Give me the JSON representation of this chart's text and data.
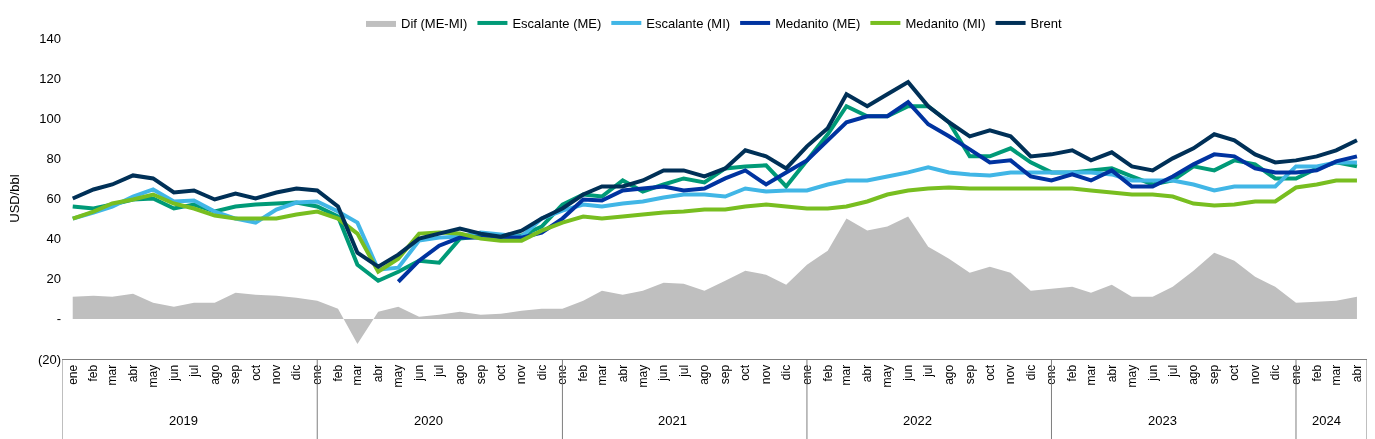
{
  "chart_data": {
    "type": "line",
    "ylabel": "USD/bbl",
    "x": [
      "2019-01",
      "2019-02",
      "2019-03",
      "2019-04",
      "2019-05",
      "2019-06",
      "2019-07",
      "2019-08",
      "2019-09",
      "2019-10",
      "2019-11",
      "2019-12",
      "2020-01",
      "2020-02",
      "2020-03",
      "2020-04",
      "2020-05",
      "2020-06",
      "2020-07",
      "2020-08",
      "2020-09",
      "2020-10",
      "2020-11",
      "2020-12",
      "2021-01",
      "2021-02",
      "2021-03",
      "2021-04",
      "2021-05",
      "2021-06",
      "2021-07",
      "2021-08",
      "2021-09",
      "2021-10",
      "2021-11",
      "2021-12",
      "2022-01",
      "2022-02",
      "2022-03",
      "2022-04",
      "2022-05",
      "2022-06",
      "2022-07",
      "2022-08",
      "2022-09",
      "2022-10",
      "2022-11",
      "2022-12",
      "2023-01",
      "2023-02",
      "2023-03",
      "2023-04",
      "2023-05",
      "2023-06",
      "2023-07",
      "2023-08",
      "2023-09",
      "2023-10",
      "2023-11",
      "2023-12",
      "2024-01",
      "2024-02",
      "2024-03",
      "2024-04"
    ],
    "xticks": [
      {
        "value": "2019-01",
        "label": "ene"
      },
      {
        "value": "2019-02",
        "label": "feb"
      },
      {
        "value": "2019-03",
        "label": "mar"
      },
      {
        "value": "2019-04",
        "label": "abr"
      },
      {
        "value": "2019-05",
        "label": "may"
      },
      {
        "value": "2019-06",
        "label": "jun"
      },
      {
        "value": "2019-07",
        "label": "jul"
      },
      {
        "value": "2019-08",
        "label": "ago"
      },
      {
        "value": "2019-09",
        "label": "sep"
      },
      {
        "value": "2019-10",
        "label": "oct"
      },
      {
        "value": "2019-11",
        "label": "nov"
      },
      {
        "value": "2019-12",
        "label": "dic"
      },
      {
        "value": "2020-01",
        "label": "ene"
      },
      {
        "value": "2020-02",
        "label": "feb"
      },
      {
        "value": "2020-03",
        "label": "mar"
      },
      {
        "value": "2020-04",
        "label": "abr"
      },
      {
        "value": "2020-05",
        "label": "may"
      },
      {
        "value": "2020-06",
        "label": "jun"
      },
      {
        "value": "2020-07",
        "label": "jul"
      },
      {
        "value": "2020-08",
        "label": "ago"
      },
      {
        "value": "2020-09",
        "label": "sep"
      },
      {
        "value": "2020-10",
        "label": "oct"
      },
      {
        "value": "2020-11",
        "label": "nov"
      },
      {
        "value": "2020-12",
        "label": "dic"
      },
      {
        "value": "2021-01",
        "label": "ene"
      },
      {
        "value": "2021-02",
        "label": "feb"
      },
      {
        "value": "2021-03",
        "label": "mar"
      },
      {
        "value": "2021-04",
        "label": "abr"
      },
      {
        "value": "2021-05",
        "label": "may"
      },
      {
        "value": "2021-06",
        "label": "jun"
      },
      {
        "value": "2021-07",
        "label": "jul"
      },
      {
        "value": "2021-08",
        "label": "ago"
      },
      {
        "value": "2021-09",
        "label": "sep"
      },
      {
        "value": "2021-10",
        "label": "oct"
      },
      {
        "value": "2021-11",
        "label": "nov"
      },
      {
        "value": "2021-12",
        "label": "dic"
      },
      {
        "value": "2022-01",
        "label": "ene"
      },
      {
        "value": "2022-02",
        "label": "feb"
      },
      {
        "value": "2022-03",
        "label": "mar"
      },
      {
        "value": "2022-04",
        "label": "abr"
      },
      {
        "value": "2022-05",
        "label": "may"
      },
      {
        "value": "2022-06",
        "label": "jun"
      },
      {
        "value": "2022-07",
        "label": "jul"
      },
      {
        "value": "2022-08",
        "label": "ago"
      },
      {
        "value": "2022-09",
        "label": "sep"
      },
      {
        "value": "2022-10",
        "label": "oct"
      },
      {
        "value": "2022-11",
        "label": "nov"
      },
      {
        "value": "2022-12",
        "label": "dic"
      },
      {
        "value": "2023-01",
        "label": "ene"
      },
      {
        "value": "2023-02",
        "label": "feb"
      },
      {
        "value": "2023-03",
        "label": "mar"
      },
      {
        "value": "2023-04",
        "label": "abr"
      },
      {
        "value": "2023-05",
        "label": "may"
      },
      {
        "value": "2023-06",
        "label": "jun"
      },
      {
        "value": "2023-07",
        "label": "jul"
      },
      {
        "value": "2023-08",
        "label": "ago"
      },
      {
        "value": "2023-09",
        "label": "sep"
      },
      {
        "value": "2023-10",
        "label": "oct"
      },
      {
        "value": "2023-11",
        "label": "nov"
      },
      {
        "value": "2023-12",
        "label": "dic"
      },
      {
        "value": "2024-01",
        "label": "ene"
      },
      {
        "value": "2024-02",
        "label": "feb"
      },
      {
        "value": "2024-03",
        "label": "mar"
      },
      {
        "value": "2024-04",
        "label": "abr"
      }
    ],
    "xlim": [
      "2018-12-16",
      "2024-04-16"
    ],
    "annotations": [
      "2019",
      "2020",
      "2021",
      "2022",
      "2023",
      "2024"
    ],
    "ylim": [
      -20,
      140
    ],
    "yticks": [
      {
        "value": -20,
        "label": "(20)"
      },
      {
        "value": 0,
        "label": "-"
      },
      20,
      40,
      60,
      80,
      100,
      120,
      140
    ],
    "legend": "top",
    "series": [
      {
        "name": "Dif (ME-MI)",
        "type": "area",
        "color": "#bfbfbf",
        "values": [
          11,
          11.5,
          11,
          12.5,
          8,
          6,
          8,
          8,
          13,
          12,
          11.5,
          10.5,
          9,
          5,
          -12.5,
          3.5,
          6,
          1,
          2,
          3.5,
          2,
          2.5,
          4,
          5,
          5,
          9,
          14,
          12,
          14,
          18,
          17.5,
          14,
          19,
          24,
          22,
          17,
          27,
          34,
          50,
          44,
          46,
          51,
          36,
          30,
          23,
          26,
          23,
          14,
          15,
          16,
          13,
          17,
          11,
          11,
          16,
          24,
          33,
          29,
          21,
          16,
          8,
          8.5,
          9,
          11
        ]
      },
      {
        "name": "Escalante (ME)",
        "color": "#009a77",
        "values": [
          56,
          55,
          57,
          59.5,
          60,
          55,
          57,
          53.5,
          56,
          57,
          57.5,
          58,
          56,
          51,
          27,
          19,
          23.5,
          29,
          28,
          40,
          41,
          41.5,
          41.5,
          46,
          57,
          62,
          61,
          69,
          63.5,
          67,
          70,
          68,
          75,
          76,
          76.5,
          66,
          79,
          92,
          106,
          101,
          101,
          106,
          106,
          98,
          81,
          81,
          85,
          78,
          73,
          73,
          74,
          75,
          71,
          67,
          69,
          76,
          74,
          79,
          77,
          70,
          70,
          75,
          78,
          76
        ]
      },
      {
        "name": "Escalante (MI)",
        "color": "#41b6e6",
        "values": [
          50,
          53,
          56,
          61,
          64.5,
          58.5,
          59,
          53.5,
          50,
          48,
          54.5,
          58,
          58.5,
          53.5,
          48,
          24.5,
          25.5,
          39,
          40.5,
          41,
          43,
          42,
          41,
          50,
          54,
          57,
          56,
          57.5,
          58.5,
          60.5,
          62,
          62,
          61,
          65,
          63.5,
          64,
          64,
          67,
          69,
          69,
          71,
          73,
          75.5,
          73,
          72,
          71.5,
          73,
          73,
          73,
          73,
          73,
          72,
          69,
          69,
          69,
          67,
          64,
          66,
          66,
          66,
          76,
          76,
          78,
          78
        ]
      },
      {
        "name": "Medanito (ME)",
        "color": "#0033a0",
        "values": [
          null,
          null,
          null,
          null,
          null,
          null,
          null,
          null,
          null,
          null,
          null,
          null,
          null,
          null,
          null,
          null,
          18.5,
          29,
          36.5,
          40.5,
          40.5,
          40.5,
          40.5,
          43,
          50,
          59.5,
          59,
          64,
          65,
          66,
          64,
          65,
          70,
          74,
          67,
          73,
          79,
          89,
          98,
          101,
          101,
          108,
          97,
          91,
          84.5,
          78,
          79,
          71,
          69,
          72,
          69,
          74,
          66,
          66,
          71,
          77,
          82,
          81,
          75,
          73,
          73,
          74,
          78.5,
          81
        ]
      },
      {
        "name": "Medanito (MI)",
        "color": "#78be20",
        "values": [
          50,
          53.5,
          57.5,
          59.5,
          62,
          57.5,
          55,
          51.5,
          50,
          50,
          50,
          52,
          53.5,
          50,
          42.5,
          23.5,
          30,
          42.5,
          43,
          42.5,
          40,
          39,
          39,
          44,
          48,
          51,
          50,
          51,
          52,
          53,
          53.5,
          54.5,
          54.5,
          56,
          57,
          56,
          55,
          55,
          56,
          58.5,
          62,
          64,
          65,
          65.5,
          65,
          65,
          65,
          65,
          65,
          65,
          64,
          63,
          62,
          62,
          61,
          57.5,
          56.5,
          57,
          58.5,
          58.5,
          65.5,
          67,
          69,
          69
        ]
      },
      {
        "name": "Brent",
        "color": "#003057",
        "values": [
          60,
          64.5,
          67,
          71.5,
          70,
          63,
          64,
          59.5,
          62.5,
          60,
          63,
          65,
          64,
          56,
          33,
          26,
          32,
          40,
          42.5,
          45,
          42.5,
          41,
          44,
          50,
          55,
          62,
          66,
          66,
          69,
          74,
          74,
          71,
          75,
          84,
          81,
          75,
          86,
          95,
          112,
          106,
          112,
          118,
          106,
          98,
          91,
          94,
          91,
          81,
          82,
          84,
          79,
          83,
          76,
          74,
          80,
          85,
          92,
          89,
          82,
          78,
          79,
          81,
          84,
          89
        ]
      }
    ]
  }
}
